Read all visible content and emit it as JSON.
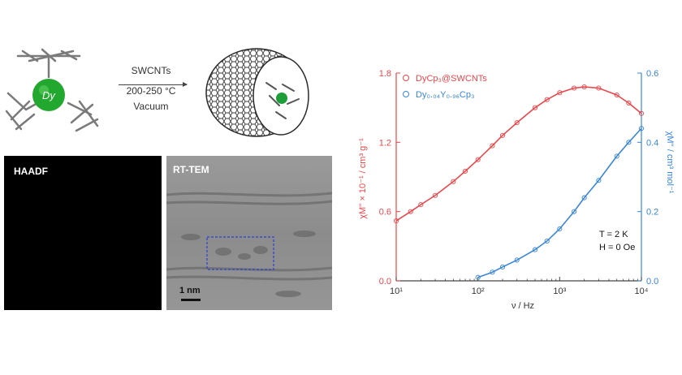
{
  "molecule": {
    "dy_label": "Dy"
  },
  "scheme": {
    "lines": [
      "SWCNTs",
      "200-250 °C",
      "Vacuum"
    ]
  },
  "panels": {
    "haadf_label": "HAADF",
    "tem_label": "RT-TEM",
    "scale_bar": "1 nm"
  },
  "chart_data": {
    "type": "scatter",
    "xlabel": "ν / Hz",
    "ylabel_left": "χM'' × 10⁻¹ / cm³ g⁻¹",
    "ylabel_right": "χM'' / cm³ mol⁻¹",
    "x_scale": "log",
    "xlim": [
      10,
      10000
    ],
    "x_ticks": [
      "10¹",
      "10²",
      "10³",
      "10⁴"
    ],
    "ylim_left": [
      0.0,
      1.8
    ],
    "y_ticks_left": [
      "0.0",
      "0.6",
      "1.2",
      "1.8"
    ],
    "ylim_right": [
      0.0,
      0.6
    ],
    "y_ticks_right": [
      "0.0",
      "0.2",
      "0.4",
      "0.6"
    ],
    "annotations": [
      "T = 2 K",
      "H = 0 Oe"
    ],
    "legend_position": "top-left",
    "series": [
      {
        "name": "DyCp₃@SWCNTs",
        "axis": "left",
        "color": "#e8474b",
        "x": [
          10,
          15,
          20,
          30,
          50,
          70,
          100,
          150,
          200,
          300,
          500,
          700,
          1000,
          1500,
          2000,
          3000,
          5000,
          7000,
          10000
        ],
        "y": [
          0.52,
          0.6,
          0.66,
          0.74,
          0.86,
          0.95,
          1.05,
          1.17,
          1.26,
          1.37,
          1.5,
          1.57,
          1.63,
          1.67,
          1.68,
          1.67,
          1.61,
          1.54,
          1.45
        ]
      },
      {
        "name": "Dy₀.₀₄Y₀.₉₆Cp₃",
        "axis": "right",
        "color": "#3a86d6",
        "x": [
          100,
          150,
          200,
          300,
          500,
          700,
          1000,
          1500,
          2000,
          3000,
          5000,
          7000,
          10000
        ],
        "y": [
          0.01,
          0.025,
          0.04,
          0.06,
          0.09,
          0.115,
          0.15,
          0.2,
          0.24,
          0.29,
          0.36,
          0.4,
          0.44
        ]
      }
    ]
  }
}
